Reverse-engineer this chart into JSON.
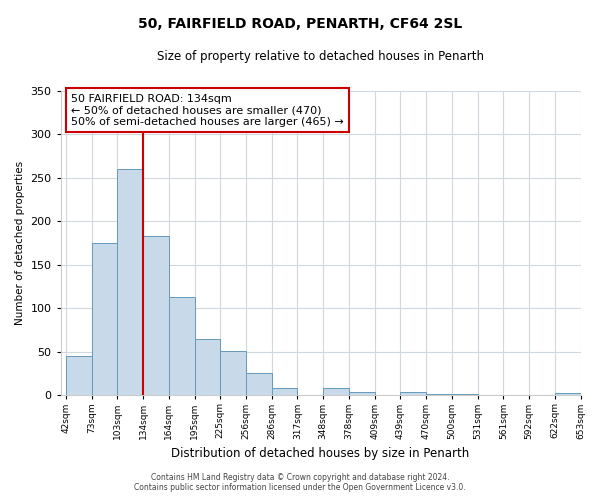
{
  "title": "50, FAIRFIELD ROAD, PENARTH, CF64 2SL",
  "subtitle": "Size of property relative to detached houses in Penarth",
  "xlabel": "Distribution of detached houses by size in Penarth",
  "ylabel": "Number of detached properties",
  "bin_labels": [
    "42sqm",
    "73sqm",
    "103sqm",
    "134sqm",
    "164sqm",
    "195sqm",
    "225sqm",
    "256sqm",
    "286sqm",
    "317sqm",
    "348sqm",
    "378sqm",
    "409sqm",
    "439sqm",
    "470sqm",
    "500sqm",
    "531sqm",
    "561sqm",
    "592sqm",
    "622sqm",
    "653sqm"
  ],
  "bin_values": [
    45,
    175,
    260,
    183,
    113,
    65,
    51,
    26,
    8,
    0,
    9,
    4,
    0,
    4,
    2,
    1,
    0,
    0,
    0,
    3
  ],
  "bar_color": "#c8daea",
  "bar_edge_color": "#6699bb",
  "vline_x_index": 3,
  "vline_color": "#cc0000",
  "ylim": [
    0,
    350
  ],
  "yticks": [
    0,
    50,
    100,
    150,
    200,
    250,
    300,
    350
  ],
  "annotation_title": "50 FAIRFIELD ROAD: 134sqm",
  "annotation_line1": "← 50% of detached houses are smaller (470)",
  "annotation_line2": "50% of semi-detached houses are larger (465) →",
  "annotation_box_color": "#cc0000",
  "footer1": "Contains HM Land Registry data © Crown copyright and database right 2024.",
  "footer2": "Contains public sector information licensed under the Open Government Licence v3.0.",
  "bg_color": "#ffffff",
  "grid_color": "#d0d8e0"
}
